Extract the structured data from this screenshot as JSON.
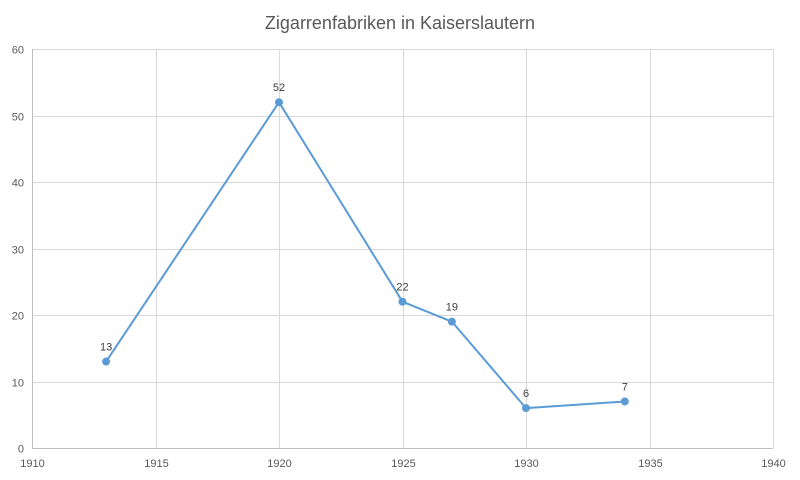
{
  "chart_data": {
    "type": "scatter",
    "title": "Zigarrenfabriken in Kaiserslautern",
    "xlabel": "",
    "ylabel": "",
    "xlim": [
      1910,
      1940
    ],
    "ylim": [
      0,
      60
    ],
    "x_ticks": [
      1910,
      1915,
      1920,
      1925,
      1930,
      1935,
      1940
    ],
    "y_ticks": [
      0,
      10,
      20,
      30,
      40,
      50,
      60
    ],
    "grid": true,
    "legend": "none",
    "series": [
      {
        "color": "#5b9bd5",
        "points": [
          {
            "x": 1913,
            "y": 13
          },
          {
            "x": 1920,
            "y": 52
          },
          {
            "x": 1925,
            "y": 22
          },
          {
            "x": 1927,
            "y": 19
          },
          {
            "x": 1930,
            "y": 6
          },
          {
            "x": 1934,
            "y": 7
          }
        ],
        "line": true,
        "markers": true,
        "data_labels": true
      }
    ]
  }
}
